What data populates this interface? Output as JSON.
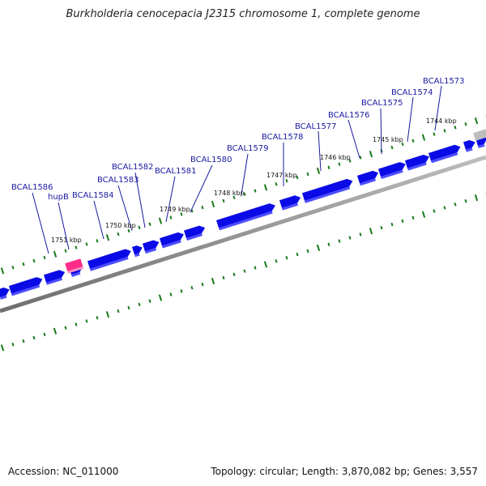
{
  "title": "Burkholderia cenocepacia J2315 chromosome 1, complete genome",
  "footer": {
    "accession": "Accession: NC_011000",
    "topology": "Topology: circular; Length: 3,870,082 bp; Genes: 3,557"
  },
  "colors": {
    "gene": "#0a0ae6",
    "gene_shade": "#4b4bff",
    "rna": "#ff2d8a",
    "backbone": "#7a7a7a",
    "tick": "#1a7a1a",
    "label": "#1a1aa0"
  },
  "scale_labels": [
    "1744 kbp",
    "1745 kbp",
    "1746 kbp",
    "1747 kbp",
    "1748 kbp",
    "1749 kbp",
    "1750 kbp",
    "1751 kbp"
  ],
  "gene_labels": [
    "BCAL1573",
    "BCAL1574",
    "BCAL1575",
    "BCAL1576",
    "BCAL1577",
    "BCAL1578",
    "BCAL1579",
    "BCAL1580",
    "BCAL1581",
    "BCAL1582",
    "BCAL1583",
    "BCAL1584",
    "hupB",
    "BCAL1586"
  ]
}
